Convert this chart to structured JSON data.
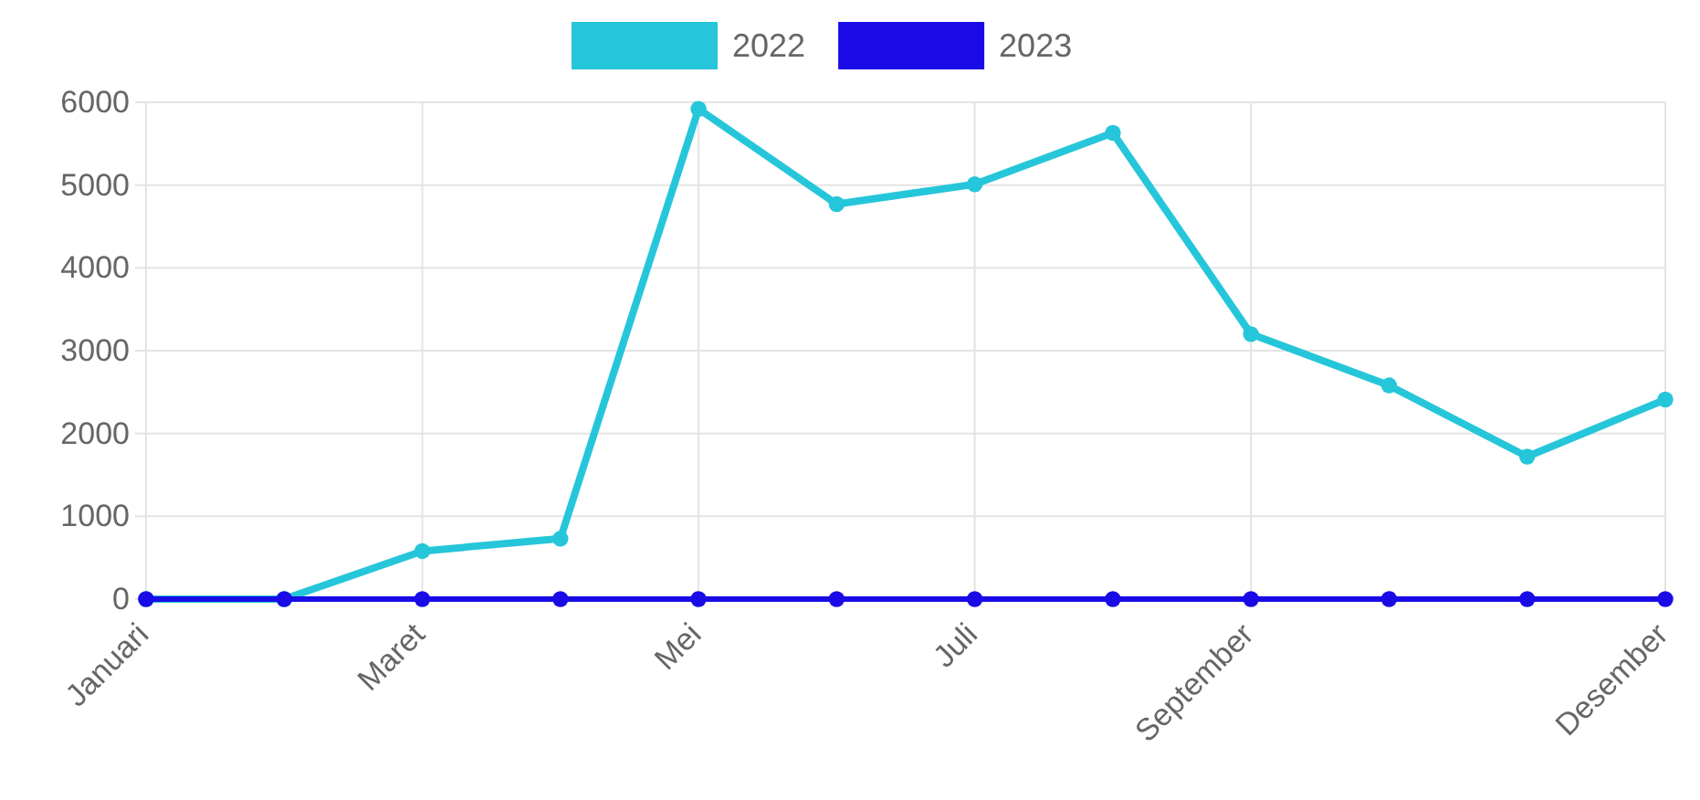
{
  "chart_data": {
    "type": "line",
    "categories": [
      "Januari",
      null,
      "Maret",
      null,
      "Mei",
      null,
      "Juli",
      null,
      "September",
      null,
      null,
      "Desember"
    ],
    "series": [
      {
        "name": "2022",
        "color": "#26c6da",
        "values": [
          0,
          0,
          580,
          730,
          5920,
          4770,
          5010,
          5630,
          3200,
          2580,
          1720,
          2410
        ]
      },
      {
        "name": "2023",
        "color": "#1a0be6",
        "values": [
          0,
          0,
          0,
          0,
          0,
          0,
          0,
          0,
          0,
          0,
          0,
          0
        ]
      }
    ],
    "ylim": [
      0,
      6000
    ],
    "yticks": [
      0,
      1000,
      2000,
      3000,
      4000,
      5000,
      6000
    ],
    "grid": true,
    "legend": "top",
    "marker": "circle",
    "line_style": "solid"
  }
}
